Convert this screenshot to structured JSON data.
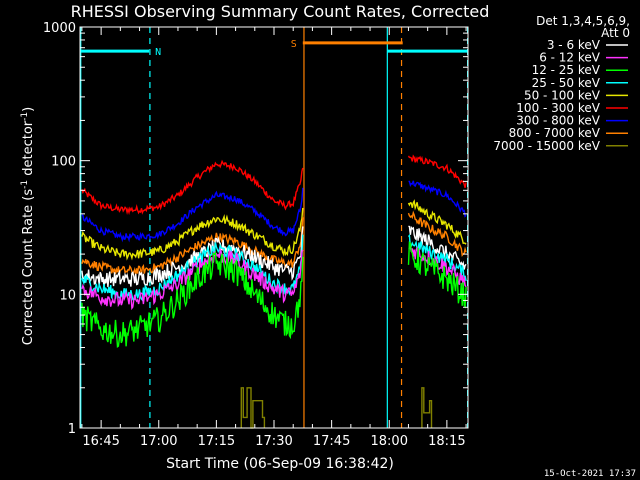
{
  "chart_data": {
    "type": "line",
    "title": "RHESSI Observing Summary Count Rates, Corrected",
    "xlabel": "Start Time (06-Sep-09 16:38:42)",
    "ylabel_main": "Corrected Count Rate (s",
    "ylabel_sup1": "-1",
    "ylabel_mid": " detector",
    "ylabel_sup2": "-1",
    "ylabel_end": ")",
    "yscale": "log",
    "ylim": [
      1,
      1000
    ],
    "xlim_minutes": [
      -20.5,
      80.5
    ],
    "x_ticks": [
      {
        "label": "16:45",
        "m": -15
      },
      {
        "label": "17:00",
        "m": 0
      },
      {
        "label": "17:15",
        "m": 15
      },
      {
        "label": "17:30",
        "m": 30
      },
      {
        "label": "17:45",
        "m": 45
      },
      {
        "label": "18:00",
        "m": 60
      },
      {
        "label": "18:15",
        "m": 75
      }
    ],
    "y_ticks": [
      {
        "label": "1",
        "v": 1
      },
      {
        "label": "10",
        "v": 10
      },
      {
        "label": "100",
        "v": 100
      },
      {
        "label": "1000",
        "v": 1000
      }
    ],
    "legend": {
      "placement": "right",
      "header1": "Det 1,3,4,5,6,9,",
      "header2": "Att 0",
      "entries": [
        {
          "label": "3 - 6 keV",
          "color": "#ffffff"
        },
        {
          "label": "6 - 12 keV",
          "color": "#ff33ff"
        },
        {
          "label": "12 - 25 keV",
          "color": "#00ff00"
        },
        {
          "label": "25 - 50 keV",
          "color": "#00ffff"
        },
        {
          "label": "50 - 100 keV",
          "color": "#e6e600"
        },
        {
          "label": "100 - 300 keV",
          "color": "#ff0000"
        },
        {
          "label": "300 - 800 keV",
          "color": "#0000ff"
        },
        {
          "label": "800 - 7000 keV",
          "color": "#ff8000"
        },
        {
          "label": "7000 - 15000 keV",
          "color": "#808000"
        }
      ]
    },
    "flags": [
      {
        "label": "N",
        "color": "#00ffff",
        "start_m": -20.5,
        "end_m": -2.5,
        "level": 660
      },
      {
        "label": "S",
        "color": "#ff8000",
        "start_m": 37.5,
        "end_m": 63.5,
        "level": 760
      },
      {
        "label": "",
        "color": "#00ffff",
        "start_m": 59.5,
        "end_m": 80.5,
        "level": 660
      }
    ],
    "vlines": [
      {
        "m": -20.3,
        "color": "#00ffff",
        "style": "solid"
      },
      {
        "m": -2.3,
        "color": "#00ffff",
        "style": "dashed"
      },
      {
        "m": 37.8,
        "color": "#ff8000",
        "style": "solid"
      },
      {
        "m": 59.5,
        "color": "#00ffff",
        "style": "solid"
      },
      {
        "m": 63.2,
        "color": "#ff8000",
        "style": "dashed"
      },
      {
        "m": 80.4,
        "color": "#00ffff",
        "style": "dashed"
      }
    ],
    "series": [
      {
        "name": "100 - 300 keV",
        "color": "#ff0000",
        "jitter": 0.025,
        "segments": [
          {
            "x": [
              -20,
              -15,
              -10,
              -5,
              0,
              5,
              10,
              15,
              20,
              25,
              30,
              33,
              35,
              37,
              37.7
            ],
            "y": [
              60,
              46,
              43,
              43,
              45,
              55,
              75,
              95,
              90,
              70,
              50,
              46,
              48,
              70,
              100
            ]
          },
          {
            "x": [
              65,
              70,
              75,
              80
            ],
            "y": [
              105,
              98,
              88,
              65
            ]
          }
        ]
      },
      {
        "name": "300 - 800 keV",
        "color": "#0000ff",
        "jitter": 0.025,
        "segments": [
          {
            "x": [
              -20,
              -15,
              -10,
              -5,
              0,
              5,
              10,
              15,
              20,
              25,
              30,
              33,
              35,
              37,
              37.7
            ],
            "y": [
              38,
              30,
              27,
              27,
              28,
              34,
              45,
              55,
              52,
              42,
              32,
              29,
              30,
              45,
              70
            ]
          },
          {
            "x": [
              65,
              70,
              75,
              80
            ],
            "y": [
              70,
              62,
              55,
              40
            ]
          }
        ]
      },
      {
        "name": "50 - 100 keV",
        "color": "#e6e600",
        "jitter": 0.035,
        "segments": [
          {
            "x": [
              -20,
              -15,
              -10,
              -5,
              0,
              5,
              10,
              15,
              20,
              25,
              30,
              33,
              35,
              37,
              37.7
            ],
            "y": [
              27,
              22,
              20,
              20,
              21,
              25,
              32,
              37,
              34,
              28,
              23,
              21,
              22,
              32,
              50
            ]
          },
          {
            "x": [
              65,
              70,
              75,
              80
            ],
            "y": [
              50,
              40,
              33,
              25
            ]
          }
        ]
      },
      {
        "name": "800 - 7000 keV",
        "color": "#ff8000",
        "jitter": 0.035,
        "segments": [
          {
            "x": [
              -20,
              -15,
              -10,
              -5,
              0,
              5,
              10,
              15,
              20,
              25,
              30,
              33,
              35,
              37,
              37.7
            ],
            "y": [
              18,
              16,
              15,
              15,
              16,
              19,
              23,
              27,
              25,
              21,
              18,
              17,
              17,
              25,
              40
            ]
          },
          {
            "x": [
              65,
              70,
              75,
              80
            ],
            "y": [
              40,
              32,
              27,
              20
            ]
          }
        ]
      },
      {
        "name": "3 - 6 keV",
        "color": "#ffffff",
        "jitter": 0.06,
        "segments": [
          {
            "x": [
              -20,
              -15,
              -10,
              -5,
              0,
              5,
              10,
              15,
              20,
              25,
              30,
              33,
              35,
              37,
              37.7
            ],
            "y": [
              14,
              13,
              13,
              13,
              14,
              16,
              19,
              23,
              22,
              19,
              16,
              15,
              15,
              20,
              35
            ]
          },
          {
            "x": [
              65,
              70,
              75,
              80
            ],
            "y": [
              30,
              25,
              20,
              16
            ]
          }
        ]
      },
      {
        "name": "25 - 50 keV",
        "color": "#00ffff",
        "jitter": 0.05,
        "segments": [
          {
            "x": [
              -20,
              -15,
              -10,
              -5,
              0,
              5,
              10,
              15,
              20,
              25,
              30,
              33,
              35,
              37,
              37.7
            ],
            "y": [
              13,
              11,
              10,
              10,
              11,
              14,
              18,
              22,
              20,
              16,
              12,
              11,
              11,
              16,
              30
            ]
          },
          {
            "x": [
              65,
              70,
              75,
              80
            ],
            "y": [
              25,
              21,
              18,
              14
            ]
          }
        ]
      },
      {
        "name": "6 - 12 keV",
        "color": "#ff33ff",
        "jitter": 0.06,
        "segments": [
          {
            "x": [
              -20,
              -15,
              -10,
              -5,
              0,
              5,
              10,
              15,
              20,
              25,
              30,
              33,
              35,
              37,
              37.7
            ],
            "y": [
              11,
              9.5,
              9,
              9,
              10,
              12,
              16,
              20,
              18,
              14,
              11,
              10,
              10,
              15,
              28
            ]
          },
          {
            "x": [
              65,
              70,
              75,
              80
            ],
            "y": [
              22,
              19,
              16,
              12
            ]
          }
        ]
      },
      {
        "name": "12 - 25 keV",
        "color": "#00ff00",
        "jitter": 0.1,
        "segments": [
          {
            "x": [
              -20,
              -15,
              -10,
              -5,
              0,
              5,
              10,
              15,
              20,
              25,
              30,
              33,
              35,
              37,
              37.7
            ],
            "y": [
              7,
              5.5,
              5,
              5.5,
              6.5,
              9,
              13,
              17,
              15,
              10,
              7,
              6,
              6,
              10,
              20
            ]
          },
          {
            "x": [
              65,
              70,
              75,
              80
            ],
            "y": [
              20,
              16,
              13,
              9.5
            ]
          }
        ]
      },
      {
        "name": "7000 - 15000 keV",
        "color": "#808000",
        "jitter": 0,
        "segments": [
          {
            "x": [
              21.5,
              21.5,
              22,
              22,
              23,
              23,
              24,
              24,
              24.5,
              24.5,
              27,
              27,
              27.5,
              27.5
            ],
            "y": [
              1,
              2,
              2,
              1.2,
              1.2,
              2,
              2,
              1,
              1,
              1.6,
              1.6,
              1.2,
              1.2,
              1
            ]
          },
          {
            "x": [
              68.5,
              68.5,
              69,
              69,
              70.5,
              70.5,
              71,
              71
            ],
            "y": [
              1,
              2,
              2,
              1.3,
              1.3,
              1.6,
              1.6,
              1
            ]
          }
        ]
      }
    ]
  },
  "footer": {
    "timestamp": "15-Oct-2021 17:37"
  }
}
